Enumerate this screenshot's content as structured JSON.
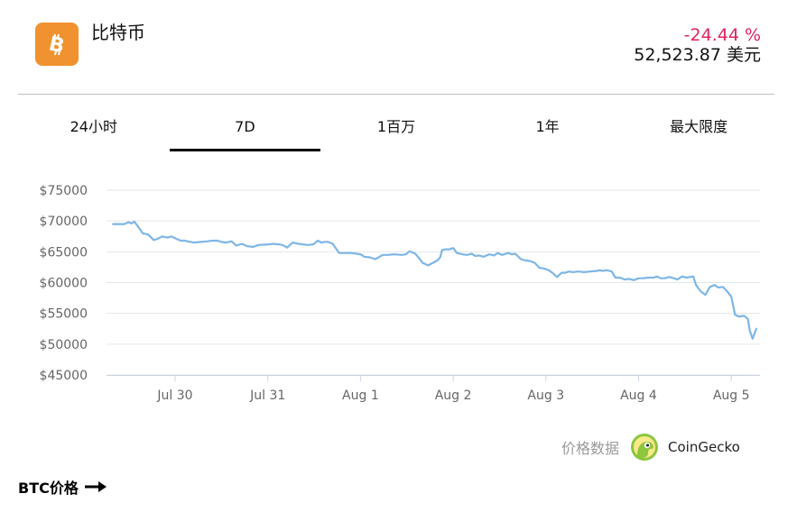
{
  "coin": {
    "name": "比特币",
    "logo_icon": "bitcoin-icon",
    "logo_color": "#f0922f"
  },
  "price": {
    "change": "-24.44 %",
    "value": "52,523.87 美元",
    "change_color": "#e0245e"
  },
  "tabs": [
    {
      "label": "24小时",
      "active": false
    },
    {
      "label": "7D",
      "active": true
    },
    {
      "label": "1百万",
      "active": false
    },
    {
      "label": "1年",
      "active": false
    },
    {
      "label": "最大限度",
      "active": false
    }
  ],
  "attribution": {
    "text": "价格数据",
    "brand": "CoinGecko",
    "icon": "coingecko-icon"
  },
  "footer": {
    "link": "BTC价格",
    "icon": "arrow-right-icon"
  },
  "chart_data": {
    "type": "line",
    "title": "",
    "xlabel": "",
    "ylabel": "",
    "line_color": "#7eb6e6",
    "grid": true,
    "ylim": [
      45000,
      75000
    ],
    "yticks": [
      "$75000",
      "$70000",
      "$65000",
      "$60000",
      "$55000",
      "$50000",
      "$45000"
    ],
    "ytick_values": [
      75000,
      70000,
      65000,
      60000,
      55000,
      50000,
      45000
    ],
    "xticks": [
      "Jul 30",
      "Jul 31",
      "Aug 1",
      "Aug 2",
      "Aug 3",
      "Aug 4",
      "Aug 5"
    ],
    "xtick_days": [
      1,
      2,
      3,
      4,
      5,
      6,
      7
    ],
    "xlim_days": [
      0.26,
      7.31
    ],
    "series": [
      {
        "x_days": [
          0.33,
          0.45,
          0.5,
          0.53,
          0.56,
          0.61,
          0.65,
          0.71,
          0.77,
          0.81,
          0.86,
          0.92,
          0.96,
          1.0,
          1.06,
          1.1,
          1.2,
          1.28,
          1.35,
          1.4,
          1.46,
          1.5,
          1.55,
          1.61,
          1.66,
          1.72,
          1.78,
          1.84,
          1.9,
          2.0,
          2.06,
          2.12,
          2.16,
          2.21,
          2.27,
          2.33,
          2.38,
          2.43,
          2.49,
          2.54,
          2.58,
          2.61,
          2.65,
          2.7,
          2.77,
          2.83,
          2.89,
          2.95,
          3.0,
          3.04,
          3.1,
          3.16,
          3.24,
          3.29,
          3.36,
          3.45,
          3.49,
          3.53,
          3.59,
          3.63,
          3.67,
          3.73,
          3.78,
          3.83,
          3.86,
          3.88,
          3.92,
          3.96,
          4.0,
          4.04,
          4.1,
          4.15,
          4.2,
          4.24,
          4.28,
          4.33,
          4.39,
          4.44,
          4.48,
          4.53,
          4.57,
          4.6,
          4.63,
          4.67,
          4.73,
          4.78,
          4.83,
          4.88,
          4.93,
          4.98,
          5.03,
          5.07,
          5.12,
          5.17,
          5.21,
          5.25,
          5.29,
          5.35,
          5.41,
          5.48,
          5.55,
          5.58,
          5.61,
          5.66,
          5.71,
          5.75,
          5.8,
          5.85,
          5.9,
          5.95,
          6.0,
          6.05,
          6.1,
          6.16,
          6.2,
          6.24,
          6.28,
          6.33,
          6.38,
          6.42,
          6.47,
          6.52,
          6.55,
          6.59,
          6.62,
          6.67,
          6.72,
          6.77,
          6.82,
          6.86,
          6.91,
          6.96,
          7.0,
          7.04,
          7.08,
          7.14,
          7.18,
          7.2,
          7.23,
          7.27
        ],
        "values": [
          69500,
          69500,
          69800,
          69600,
          69900,
          68900,
          68000,
          67800,
          66900,
          67100,
          67500,
          67300,
          67500,
          67200,
          66800,
          66800,
          66500,
          66600,
          66700,
          66800,
          66800,
          66600,
          66500,
          66700,
          66000,
          66300,
          65900,
          65800,
          66100,
          66200,
          66300,
          66200,
          66100,
          65700,
          66500,
          66300,
          66200,
          66100,
          66200,
          66800,
          66500,
          66600,
          66600,
          66300,
          64800,
          64800,
          64800,
          64700,
          64600,
          64200,
          64100,
          63800,
          64500,
          64500,
          64600,
          64500,
          64600,
          65100,
          64700,
          64000,
          63200,
          62800,
          63200,
          63600,
          64100,
          65300,
          65400,
          65400,
          65600,
          64800,
          64600,
          64500,
          64700,
          64300,
          64400,
          64200,
          64600,
          64400,
          64800,
          64500,
          64700,
          64800,
          64600,
          64700,
          63800,
          63600,
          63500,
          63200,
          62400,
          62300,
          62000,
          61600,
          60900,
          61600,
          61600,
          61800,
          61700,
          61800,
          61700,
          61800,
          61900,
          62000,
          61900,
          62000,
          61800,
          60800,
          60800,
          60500,
          60600,
          60400,
          60700,
          60700,
          60800,
          60800,
          61000,
          60700,
          60700,
          60900,
          60700,
          60500,
          61000,
          60800,
          60900,
          61000,
          59600,
          58600,
          58000,
          59300,
          59600,
          59200,
          59300,
          58500,
          57700,
          54800,
          54500,
          54600,
          54100,
          52200,
          50900,
          52500
        ]
      }
    ]
  }
}
